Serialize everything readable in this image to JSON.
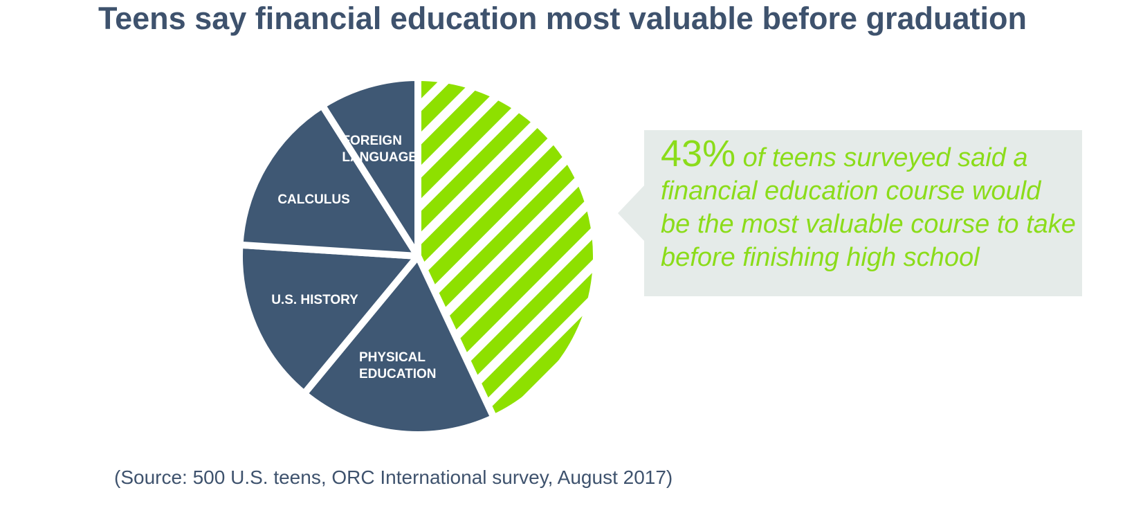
{
  "chart_data": {
    "type": "pie",
    "title": "Teens say financial education most valuable before graduation",
    "categories": [
      null,
      "PHYSICAL EDUCATION",
      "U.S. HISTORY",
      "CALCULUS",
      "FOREIGN LANGUAGE"
    ],
    "values": [
      43,
      18,
      15,
      15,
      9
    ],
    "value_labels": [
      "43%",
      null,
      null,
      null,
      null
    ],
    "colors": [
      "#8ee000",
      "#3f5874",
      "#3f5874",
      "#3f5874",
      "#3f5874"
    ],
    "annotation": "of teens surveyed said a financial education course would be the most valuable course to take before finishing high school",
    "source": "(Source: 500 U.S. teens, ORC International survey, August 2017)"
  }
}
